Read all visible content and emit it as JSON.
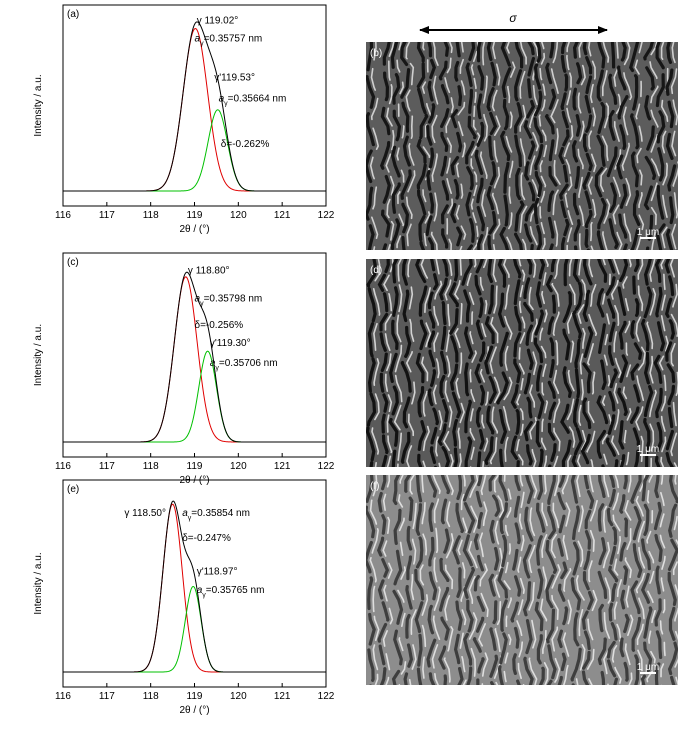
{
  "figure": {
    "stress_symbol": "σ",
    "colors": {
      "total": "#000000",
      "gamma": "#e00000",
      "gamma_prime": "#00c000"
    }
  },
  "chart_data": [
    {
      "type": "line",
      "panel_label": "(a)",
      "xlabel": "2θ / (°)",
      "ylabel": "Intensity / a.u.",
      "xlim": [
        116,
        122
      ],
      "ylim": [
        0,
        1.12
      ],
      "x_ticks": [
        "116",
        "117",
        "118",
        "119",
        "120",
        "121",
        "122"
      ],
      "series": [
        {
          "role": "total"
        },
        {
          "role": "gamma"
        },
        {
          "role": "gamma_prime"
        }
      ],
      "peaks": [
        {
          "role": "gamma",
          "center": 119.02,
          "height": 1.0,
          "sigma": 0.28
        },
        {
          "role": "gamma_prime",
          "center": 119.53,
          "height": 0.5,
          "sigma": 0.22
        }
      ],
      "annotations": [
        {
          "text": "γ 119.02°",
          "x": 119.05,
          "y": 1.03
        },
        {
          "text": "γ'119.53°",
          "x": 119.45,
          "y": 0.68
        },
        {
          "text": "aγ=0.35757 nm",
          "x": 119.0,
          "y": 0.92
        },
        {
          "text": "aγ=0.35664 nm",
          "x": 119.55,
          "y": 0.55
        },
        {
          "text": "δ=-0.262%",
          "x": 119.6,
          "y": 0.27
        }
      ]
    },
    {
      "type": "line",
      "panel_label": "(c)",
      "xlabel": "2θ / (°)",
      "ylabel": "Intensity / a.u.",
      "xlim": [
        116,
        122
      ],
      "ylim": [
        0,
        1.12
      ],
      "x_ticks": [
        "116",
        "117",
        "118",
        "119",
        "120",
        "121",
        "122"
      ],
      "series": [
        {
          "role": "total"
        },
        {
          "role": "gamma"
        },
        {
          "role": "gamma_prime"
        }
      ],
      "peaks": [
        {
          "role": "gamma",
          "center": 118.8,
          "height": 1.0,
          "sigma": 0.26
        },
        {
          "role": "gamma_prime",
          "center": 119.3,
          "height": 0.55,
          "sigma": 0.2
        }
      ],
      "annotations": [
        {
          "text": "γ 118.80°",
          "x": 118.85,
          "y": 1.02
        },
        {
          "text": "aγ=0.35798 nm",
          "x": 119.0,
          "y": 0.85
        },
        {
          "text": "δ=-0.256%",
          "x": 119.0,
          "y": 0.69
        },
        {
          "text": "γ'119.30°",
          "x": 119.35,
          "y": 0.58
        },
        {
          "text": "aγ=0.35706 nm",
          "x": 119.35,
          "y": 0.46
        }
      ]
    },
    {
      "type": "line",
      "panel_label": "(e)",
      "xlabel": "2θ / (°)",
      "ylabel": "Intensity / a.u.",
      "xlim": [
        116,
        122
      ],
      "ylim": [
        0,
        1.12
      ],
      "x_ticks": [
        "116",
        "117",
        "118",
        "119",
        "120",
        "121",
        "122"
      ],
      "series": [
        {
          "role": "total"
        },
        {
          "role": "gamma"
        },
        {
          "role": "gamma_prime"
        }
      ],
      "peaks": [
        {
          "role": "gamma",
          "center": 118.5,
          "height": 1.0,
          "sigma": 0.22
        },
        {
          "role": "gamma_prime",
          "center": 118.97,
          "height": 0.51,
          "sigma": 0.18
        }
      ],
      "annotations": [
        {
          "text": "γ 118.50°",
          "x": 117.4,
          "y": 0.93
        },
        {
          "text": "aγ=0.35854 nm",
          "x": 118.72,
          "y": 0.93
        },
        {
          "text": "δ=-0.247%",
          "x": 118.72,
          "y": 0.78
        },
        {
          "text": "γ'118.97°",
          "x": 119.05,
          "y": 0.58
        },
        {
          "text": "aγ=0.35765 nm",
          "x": 119.05,
          "y": 0.47
        }
      ]
    }
  ],
  "micrographs": [
    {
      "label": "(b)",
      "scale": "1 μm",
      "tone": "#5c5c5c",
      "dark": "#161616",
      "light": "#cfcfcf"
    },
    {
      "label": "(d)",
      "scale": "1 μm",
      "tone": "#5a5a5a",
      "dark": "#121212",
      "light": "#d2d2d2"
    },
    {
      "label": "(f)",
      "scale": "1 μm",
      "tone": "#8d8d8d",
      "dark": "#3e3e3e",
      "light": "#dedede"
    }
  ]
}
